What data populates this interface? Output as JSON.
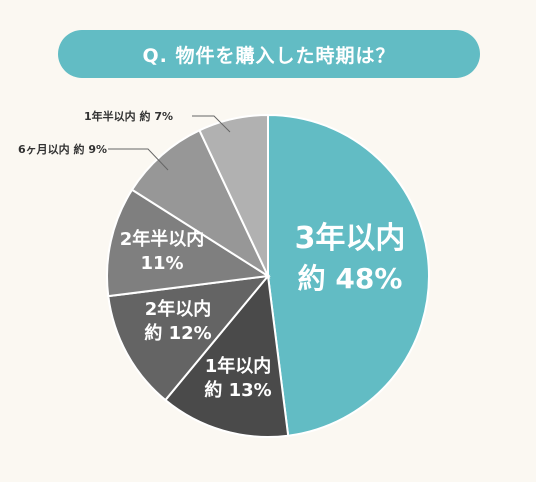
{
  "title": "Q. 物件を購入した時期は？",
  "chart_data": {
    "type": "pie",
    "title": "Q. 物件を購入した時期は？",
    "slices": [
      {
        "name": "3年以内",
        "value": 48,
        "value_label": "約 48%",
        "color": "#62bcc4"
      },
      {
        "name": "1年以内",
        "value": 13,
        "value_label": "約 13%",
        "color": "#4a4a4a"
      },
      {
        "name": "2年以内",
        "value": 12,
        "value_label": "約 12%",
        "color": "#646464"
      },
      {
        "name": "2年半以内",
        "value": 11,
        "value_label": "11%",
        "color": "#7f7f7f"
      },
      {
        "name": "6ヶ月以内",
        "value": 9,
        "value_label": "約 9%",
        "color": "#979797"
      },
      {
        "name": "1年半以内",
        "value": 7,
        "value_label": "約 7%",
        "color": "#b1b1b1"
      }
    ],
    "start_angle_deg": 0,
    "direction": "clockwise"
  }
}
